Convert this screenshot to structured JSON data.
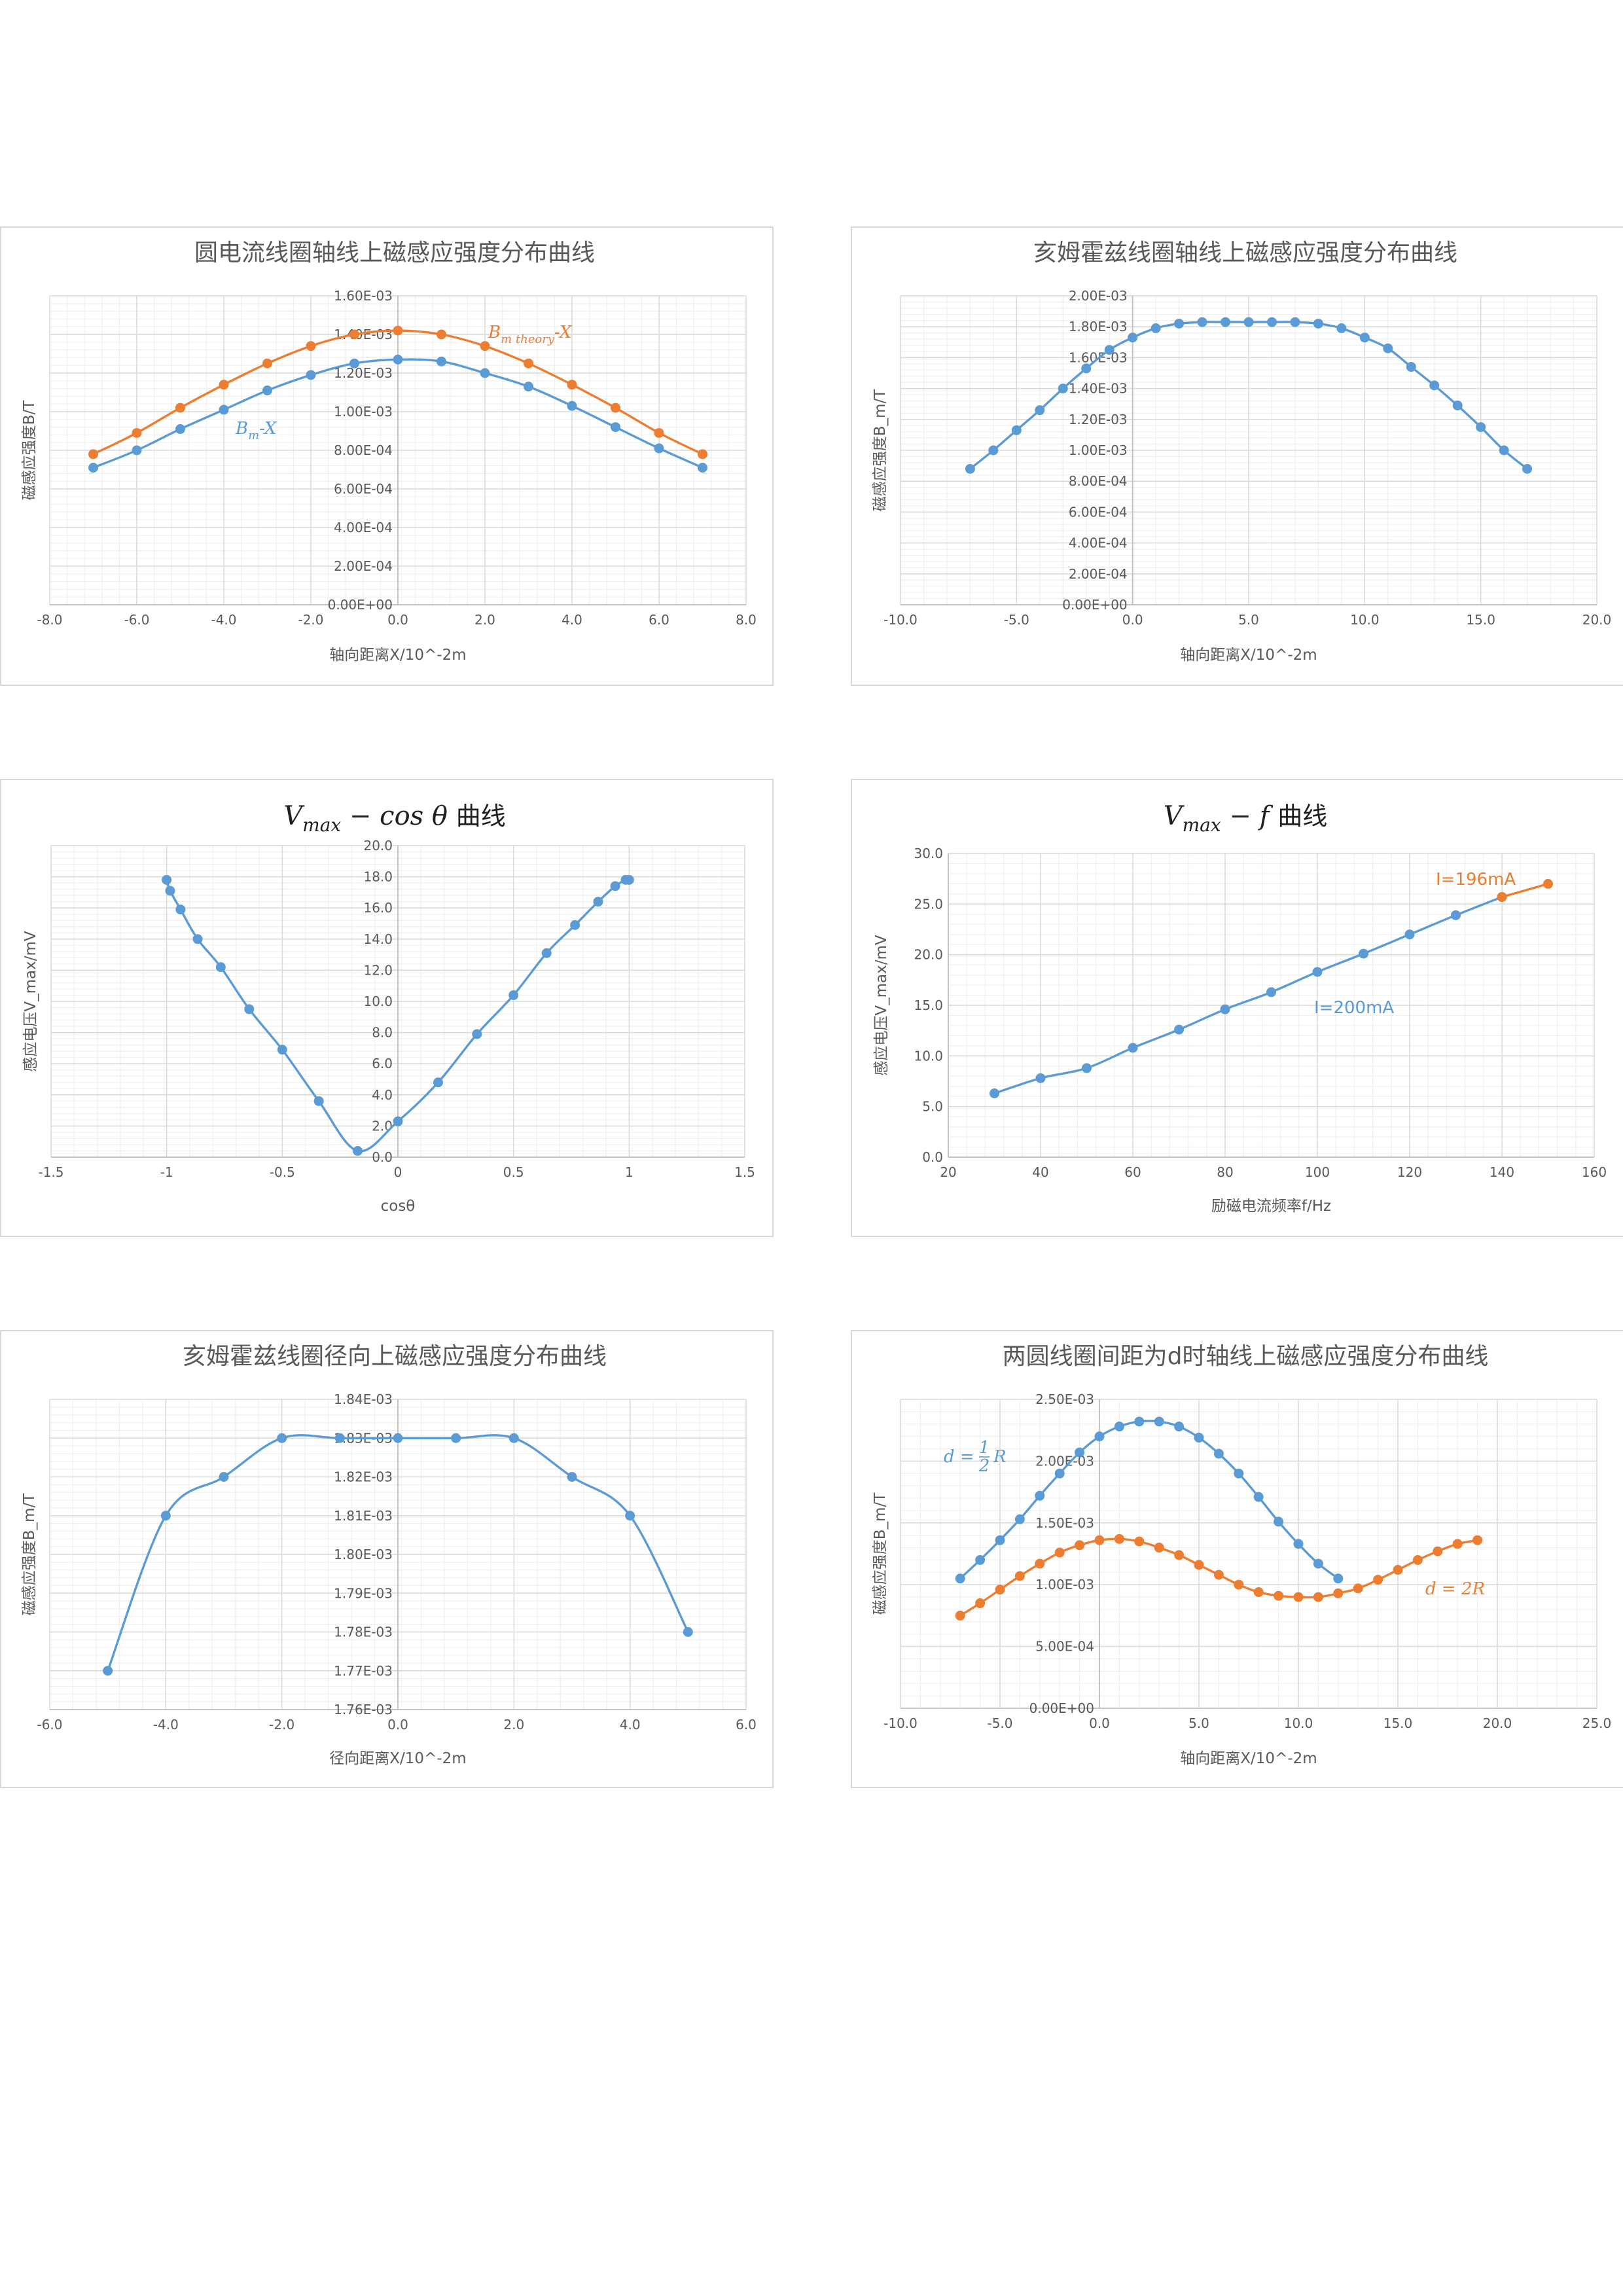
{
  "chart_data": [
    {
      "type": "line",
      "title": "圆电流线圈轴线上磁感应强度分布曲线",
      "xlabel": "轴向距离X/10^-2m",
      "ylabel": "磁感应强度B/T",
      "xlim": [
        -8.0,
        8.0
      ],
      "xstep": 2.0,
      "xdec": 1,
      "ylim": [
        0,
        0.0016
      ],
      "ystep": 0.0002,
      "yformat": "sci",
      "yaxis_at_x0": true,
      "xticks": [
        "-8.0",
        "-6.0",
        "-4.0",
        "-2.0",
        "0.0",
        "2.0",
        "4.0",
        "6.0",
        "8.0"
      ],
      "yticks": [
        "0.00E+00",
        "2.00E-04",
        "4.00E-04",
        "6.00E-04",
        "8.00E-04",
        "1.00E-03",
        "1.20E-03",
        "1.40E-03",
        "1.60E-03"
      ],
      "series": [
        {
          "name": "Bm-X",
          "label": "Bm-X",
          "color": "#5b9bd5",
          "x": [
            -7,
            -6,
            -5,
            -4,
            -3,
            -2,
            -1,
            0,
            1,
            2,
            3,
            4,
            5,
            6,
            7
          ],
          "y": [
            0.00071,
            0.0008,
            0.00091,
            0.00101,
            0.00111,
            0.00119,
            0.00125,
            0.00127,
            0.00126,
            0.0012,
            0.00113,
            0.00103,
            0.00092,
            0.00081,
            0.00071
          ]
        },
        {
          "name": "Bm theory-X",
          "label": "Bm theory-X",
          "color": "#ed7d31",
          "x": [
            -7,
            -6,
            -5,
            -4,
            -3,
            -2,
            -1,
            0,
            1,
            2,
            3,
            4,
            5,
            6,
            7
          ],
          "y": [
            0.00078,
            0.00089,
            0.00102,
            0.00114,
            0.00125,
            0.00134,
            0.0014,
            0.00142,
            0.0014,
            0.00134,
            0.00125,
            0.00114,
            0.00102,
            0.00089,
            0.00078
          ]
        }
      ]
    },
    {
      "type": "line",
      "title": "亥姆霍兹线圈轴线上磁感应强度分布曲线",
      "xlabel": "轴向距离X/10^-2m",
      "ylabel": "磁感应强度B_m/T",
      "xlim": [
        -10.0,
        20.0
      ],
      "xstep": 5.0,
      "xdec": 1,
      "ylim": [
        0,
        0.002
      ],
      "ystep": 0.0002,
      "yformat": "sci",
      "yaxis_at_x0": true,
      "xticks": [
        "-10.0",
        "-5.0",
        "0.0",
        "5.0",
        "10.0",
        "15.0",
        "20.0"
      ],
      "yticks": [
        "0.00E+00",
        "2.00E-04",
        "4.00E-04",
        "6.00E-04",
        "8.00E-04",
        "1.00E-03",
        "1.20E-03",
        "1.40E-03",
        "1.60E-03",
        "1.80E-03",
        "2.00E-03"
      ],
      "series": [
        {
          "name": "Bm-X",
          "color": "#5b9bd5",
          "x": [
            -7,
            -6,
            -5,
            -4,
            -3,
            -2,
            -1,
            0,
            1,
            2,
            3,
            4,
            5,
            6,
            7,
            8,
            9,
            10,
            11,
            12,
            13,
            14,
            15,
            16,
            17
          ],
          "y": [
            0.00088,
            0.001,
            0.00113,
            0.00126,
            0.0014,
            0.00153,
            0.00165,
            0.00173,
            0.00179,
            0.00182,
            0.00183,
            0.00183,
            0.00183,
            0.00183,
            0.00183,
            0.00182,
            0.00179,
            0.00173,
            0.00166,
            0.00154,
            0.00142,
            0.00129,
            0.00115,
            0.001,
            0.00088
          ]
        }
      ]
    },
    {
      "type": "line",
      "title": "Vmax − cos θ 曲线",
      "title_parts": {
        "a": "V",
        "sub": "max",
        "b": " − cos θ ",
        "c": "曲线"
      },
      "xlabel": "cosθ",
      "ylabel": "感应电压V_max/mV",
      "xlim": [
        -1.5,
        1.5
      ],
      "xstep": 0.5,
      "xdec": -1,
      "ylim": [
        0,
        20
      ],
      "ystep": 2,
      "yformat": "fixed1",
      "yaxis_at_x0": true,
      "xticks": [
        "-1.5",
        "-1",
        "-0.5",
        "0",
        "0.5",
        "1",
        "1.5"
      ],
      "yticks": [
        "0.0",
        "2.0",
        "4.0",
        "6.0",
        "8.0",
        "10.0",
        "12.0",
        "14.0",
        "16.0",
        "18.0",
        "20.0"
      ],
      "series": [
        {
          "name": "Vmax-cos",
          "color": "#5b9bd5",
          "x": [
            -1.0,
            -0.985,
            -0.94,
            -0.866,
            -0.766,
            -0.643,
            -0.5,
            -0.342,
            -0.174,
            0.0,
            0.174,
            0.342,
            0.5,
            0.643,
            0.766,
            0.866,
            0.94,
            0.985,
            1.0
          ],
          "y": [
            17.8,
            17.1,
            15.9,
            14.0,
            12.2,
            9.5,
            6.9,
            3.6,
            0.4,
            2.3,
            4.8,
            7.9,
            10.4,
            13.1,
            14.9,
            16.4,
            17.4,
            17.8,
            17.8
          ]
        }
      ]
    },
    {
      "type": "line",
      "title": "Vmax − f 曲线",
      "title_parts": {
        "a": "V",
        "sub": "max",
        "b": " − f ",
        "c": "曲线"
      },
      "xlabel": "励磁电流频率f/Hz",
      "ylabel": "感应电压V_max/mV",
      "xlim": [
        20,
        160
      ],
      "xstep": 20,
      "xdec": 0,
      "ylim": [
        0,
        30
      ],
      "ystep": 5,
      "yformat": "fixed1",
      "yaxis_at_x0": false,
      "xticks": [
        "20",
        "40",
        "60",
        "80",
        "100",
        "120",
        "140",
        "160"
      ],
      "yticks": [
        "0.0",
        "5.0",
        "10.0",
        "15.0",
        "20.0",
        "25.0",
        "30.0"
      ],
      "series": [
        {
          "name": "I=200mA",
          "label": "I=200mA",
          "color": "#5b9bd5",
          "x": [
            30,
            40,
            50,
            60,
            70,
            80,
            90,
            100,
            110,
            120,
            130,
            140
          ],
          "y": [
            6.3,
            7.8,
            8.8,
            10.8,
            12.6,
            14.6,
            16.3,
            18.3,
            20.1,
            22.0,
            23.9,
            25.7
          ]
        },
        {
          "name": "I=196mA",
          "label": "I=196mA",
          "color": "#ed7d31",
          "x": [
            140,
            150
          ],
          "y": [
            25.7,
            27.0
          ]
        }
      ]
    },
    {
      "type": "line",
      "title": "亥姆霍兹线圈径向上磁感应强度分布曲线",
      "xlabel": "径向距离X/10^-2m",
      "ylabel": "磁感应强度B_m/T",
      "xlim": [
        -6.0,
        6.0
      ],
      "xstep": 2.0,
      "xdec": 1,
      "ylim": [
        0.00176,
        0.00184
      ],
      "ystep": 1e-05,
      "yformat": "sci",
      "yaxis_at_x0": true,
      "xticks": [
        "-6.0",
        "-4.0",
        "-2.0",
        "0.0",
        "2.0",
        "4.0",
        "6.0"
      ],
      "yticks": [
        "1.76E-03",
        "1.77E-03",
        "1.78E-03",
        "1.79E-03",
        "1.80E-03",
        "1.81E-03",
        "1.82E-03",
        "1.83E-03",
        "1.84E-03"
      ],
      "series": [
        {
          "name": "Br-X",
          "color": "#5b9bd5",
          "x": [
            -5,
            -4,
            -3,
            -2,
            -1,
            0,
            1,
            2,
            3,
            4,
            5
          ],
          "y": [
            0.00177,
            0.00181,
            0.00182,
            0.00183,
            0.00183,
            0.00183,
            0.00183,
            0.00183,
            0.00182,
            0.00181,
            0.00178
          ]
        }
      ]
    },
    {
      "type": "line",
      "title": "两圆线圈间距为d时轴线上磁感应强度分布曲线",
      "xlabel": "轴向距离X/10^-2m",
      "ylabel": "磁感应强度B_m/T",
      "xlim": [
        -10.0,
        25.0
      ],
      "xstep": 5.0,
      "xdec": 1,
      "ylim": [
        0,
        0.0025
      ],
      "ystep": 0.0005,
      "yformat": "sci",
      "yaxis_at_x0": true,
      "xticks": [
        "-10.0",
        "-5.0",
        "0.0",
        "5.0",
        "10.0",
        "15.0",
        "20.0",
        "25.0"
      ],
      "yticks": [
        "0.00E+00",
        "5.00E-04",
        "1.00E-03",
        "1.50E-03",
        "2.00E-03",
        "2.50E-03"
      ],
      "series": [
        {
          "name": "d=R/2",
          "label": "d = R/2",
          "color": "#5b9bd5",
          "x": [
            -7,
            -6,
            -5,
            -4,
            -3,
            -2,
            -1,
            0,
            1,
            2,
            3,
            4,
            5,
            6,
            7,
            8,
            9,
            10,
            11,
            12
          ],
          "y": [
            0.00105,
            0.0012,
            0.00136,
            0.00153,
            0.00172,
            0.0019,
            0.00207,
            0.0022,
            0.00228,
            0.00232,
            0.00232,
            0.00228,
            0.00219,
            0.00206,
            0.0019,
            0.00171,
            0.00151,
            0.00133,
            0.00117,
            0.00105
          ]
        },
        {
          "name": "d=2R",
          "label": "d = 2R",
          "color": "#ed7d31",
          "x": [
            -7,
            -6,
            -5,
            -4,
            -3,
            -2,
            -1,
            0,
            1,
            2,
            3,
            4,
            5,
            6,
            7,
            8,
            9,
            10,
            11,
            12,
            13,
            14,
            15,
            16,
            17,
            18,
            19
          ],
          "y": [
            0.00075,
            0.00085,
            0.00096,
            0.00107,
            0.00117,
            0.00126,
            0.00132,
            0.00136,
            0.00137,
            0.00135,
            0.0013,
            0.00124,
            0.00116,
            0.00108,
            0.001,
            0.00094,
            0.00091,
            0.0009,
            0.0009,
            0.00093,
            0.00097,
            0.00104,
            0.00112,
            0.0012,
            0.00127,
            0.00133,
            0.00136
          ]
        }
      ]
    }
  ]
}
